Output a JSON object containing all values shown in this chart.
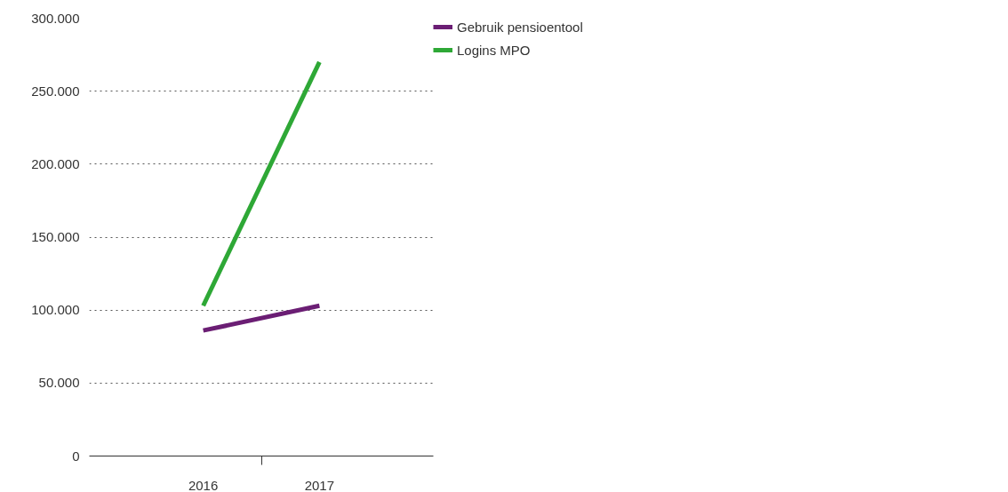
{
  "chart_data": {
    "type": "line",
    "categories": [
      "2016",
      "2017"
    ],
    "series": [
      {
        "name": "Gebruik pensioentool",
        "color": "#6b1e74",
        "values": [
          86000,
          103000
        ]
      },
      {
        "name": "Logins MPO",
        "color": "#2ea836",
        "values": [
          103000,
          270000
        ]
      }
    ],
    "ylim": [
      0,
      300000
    ],
    "yticks": [
      {
        "value": 0,
        "label": "0"
      },
      {
        "value": 50000,
        "label": "50.000"
      },
      {
        "value": 100000,
        "label": "100.000"
      },
      {
        "value": 150000,
        "label": "150.000"
      },
      {
        "value": 200000,
        "label": "200.000"
      },
      {
        "value": 250000,
        "label": "250.000"
      },
      {
        "value": 300000,
        "label": "300.000"
      }
    ],
    "grid": "y",
    "legend": "top right",
    "marker": "none",
    "line_style": "solid"
  }
}
